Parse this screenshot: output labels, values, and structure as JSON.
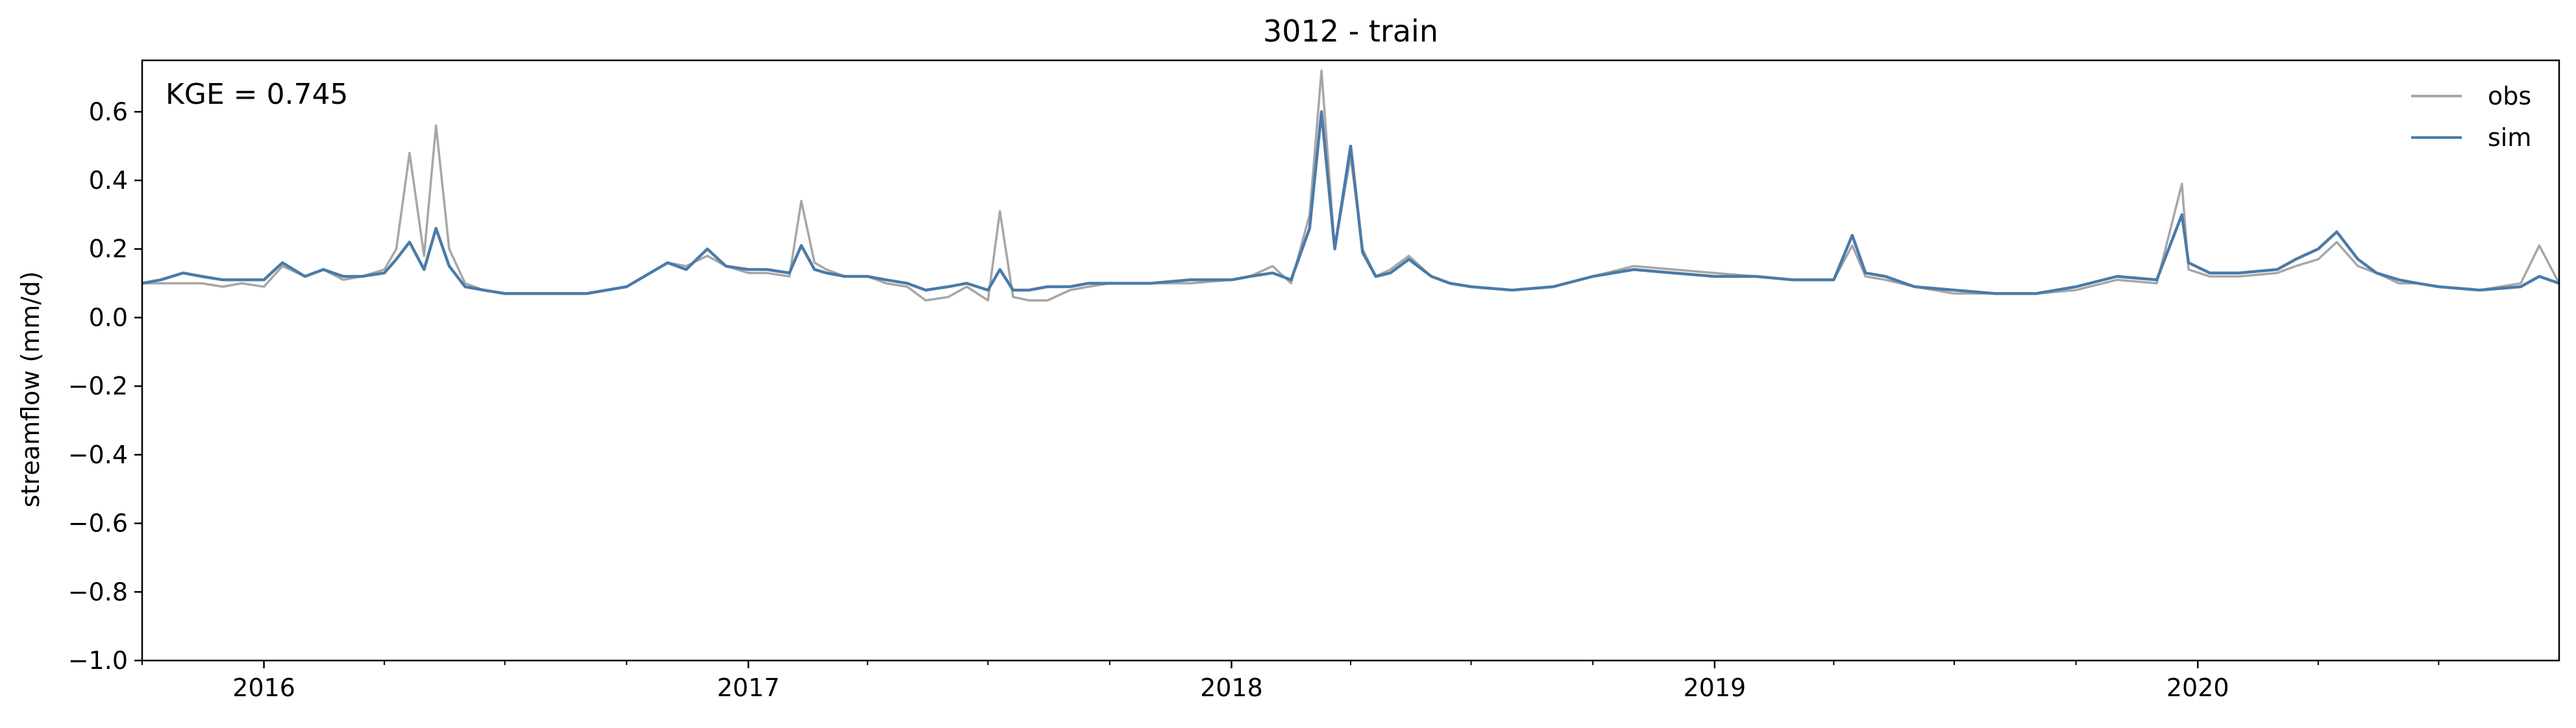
{
  "chart_data": {
    "type": "line",
    "title": "3012 - train",
    "xlabel": "",
    "ylabel": "streamflow (mm/d)",
    "annotation": "KGE = 0.745",
    "xlim": [
      "2015-10-01",
      "2020-09-30"
    ],
    "ylim": [
      -1.0,
      0.75
    ],
    "x_ticks": [
      "2016",
      "2017",
      "2018",
      "2019",
      "2020"
    ],
    "y_ticks": [
      "−1.0",
      "−0.8",
      "−0.6",
      "−0.4",
      "−0.2",
      "0.0",
      "0.2",
      "0.4",
      "0.6"
    ],
    "grid": false,
    "legend": {
      "position": "top-right"
    },
    "x": [
      "2015-10-01",
      "2015-10-15",
      "2015-11-01",
      "2015-11-15",
      "2015-12-01",
      "2015-12-15",
      "2016-01-01",
      "2016-01-15",
      "2016-02-01",
      "2016-02-15",
      "2016-03-01",
      "2016-03-15",
      "2016-04-01",
      "2016-04-10",
      "2016-04-20",
      "2016-05-01",
      "2016-05-10",
      "2016-05-20",
      "2016-06-01",
      "2016-06-15",
      "2016-07-01",
      "2016-08-01",
      "2016-09-01",
      "2016-10-01",
      "2016-11-01",
      "2016-11-15",
      "2016-12-01",
      "2016-12-15",
      "2017-01-01",
      "2017-01-15",
      "2017-02-01",
      "2017-02-10",
      "2017-02-20",
      "2017-03-01",
      "2017-03-15",
      "2017-04-01",
      "2017-04-15",
      "2017-05-01",
      "2017-05-15",
      "2017-06-01",
      "2017-06-15",
      "2017-07-01",
      "2017-07-10",
      "2017-07-20",
      "2017-08-01",
      "2017-08-15",
      "2017-09-01",
      "2017-09-15",
      "2017-10-01",
      "2017-11-01",
      "2017-12-01",
      "2018-01-01",
      "2018-01-15",
      "2018-02-01",
      "2018-02-15",
      "2018-03-01",
      "2018-03-10",
      "2018-03-20",
      "2018-04-01",
      "2018-04-10",
      "2018-04-20",
      "2018-05-01",
      "2018-05-15",
      "2018-06-01",
      "2018-06-15",
      "2018-07-01",
      "2018-08-01",
      "2018-09-01",
      "2018-10-01",
      "2018-11-01",
      "2018-12-01",
      "2019-01-01",
      "2019-02-01",
      "2019-03-01",
      "2019-04-01",
      "2019-04-15",
      "2019-04-25",
      "2019-05-10",
      "2019-06-01",
      "2019-07-01",
      "2019-08-01",
      "2019-09-01",
      "2019-10-01",
      "2019-11-01",
      "2019-12-01",
      "2019-12-20",
      "2019-12-25",
      "2020-01-10",
      "2020-02-01",
      "2020-03-01",
      "2020-03-15",
      "2020-04-01",
      "2020-04-15",
      "2020-05-01",
      "2020-05-15",
      "2020-06-01",
      "2020-06-15",
      "2020-07-01",
      "2020-08-01",
      "2020-09-01",
      "2020-09-15",
      "2020-09-30"
    ],
    "series": [
      {
        "name": "obs",
        "color": "#a6a6a6",
        "values": [
          0.1,
          0.1,
          0.1,
          0.1,
          0.09,
          0.1,
          0.09,
          0.15,
          0.12,
          0.14,
          0.11,
          0.12,
          0.14,
          0.2,
          0.48,
          0.18,
          0.56,
          0.2,
          0.1,
          0.08,
          0.07,
          0.07,
          0.07,
          0.09,
          0.16,
          0.15,
          0.18,
          0.15,
          0.13,
          0.13,
          0.12,
          0.34,
          0.16,
          0.14,
          0.12,
          0.12,
          0.1,
          0.09,
          0.05,
          0.06,
          0.09,
          0.05,
          0.31,
          0.06,
          0.05,
          0.05,
          0.08,
          0.09,
          0.1,
          0.1,
          0.1,
          0.11,
          0.12,
          0.15,
          0.1,
          0.3,
          0.72,
          0.2,
          0.47,
          0.2,
          0.12,
          0.14,
          0.18,
          0.12,
          0.1,
          0.09,
          0.08,
          0.09,
          0.12,
          0.15,
          0.14,
          0.13,
          0.12,
          0.11,
          0.11,
          0.21,
          0.12,
          0.11,
          0.09,
          0.07,
          0.07,
          0.07,
          0.08,
          0.11,
          0.1,
          0.39,
          0.14,
          0.12,
          0.12,
          0.13,
          0.15,
          0.17,
          0.22,
          0.15,
          0.13,
          0.1,
          0.1,
          0.09,
          0.08,
          0.1,
          0.21,
          0.1
        ]
      },
      {
        "name": "sim",
        "color": "#4a7ba8",
        "values": [
          0.1,
          0.11,
          0.13,
          0.12,
          0.11,
          0.11,
          0.11,
          0.16,
          0.12,
          0.14,
          0.12,
          0.12,
          0.13,
          0.17,
          0.22,
          0.14,
          0.26,
          0.15,
          0.09,
          0.08,
          0.07,
          0.07,
          0.07,
          0.09,
          0.16,
          0.14,
          0.2,
          0.15,
          0.14,
          0.14,
          0.13,
          0.21,
          0.14,
          0.13,
          0.12,
          0.12,
          0.11,
          0.1,
          0.08,
          0.09,
          0.1,
          0.08,
          0.14,
          0.08,
          0.08,
          0.09,
          0.09,
          0.1,
          0.1,
          0.1,
          0.11,
          0.11,
          0.12,
          0.13,
          0.11,
          0.26,
          0.6,
          0.2,
          0.5,
          0.19,
          0.12,
          0.13,
          0.17,
          0.12,
          0.1,
          0.09,
          0.08,
          0.09,
          0.12,
          0.14,
          0.13,
          0.12,
          0.12,
          0.11,
          0.11,
          0.24,
          0.13,
          0.12,
          0.09,
          0.08,
          0.07,
          0.07,
          0.09,
          0.12,
          0.11,
          0.3,
          0.16,
          0.13,
          0.13,
          0.14,
          0.17,
          0.2,
          0.25,
          0.17,
          0.13,
          0.11,
          0.1,
          0.09,
          0.08,
          0.09,
          0.12,
          0.1
        ]
      }
    ]
  }
}
